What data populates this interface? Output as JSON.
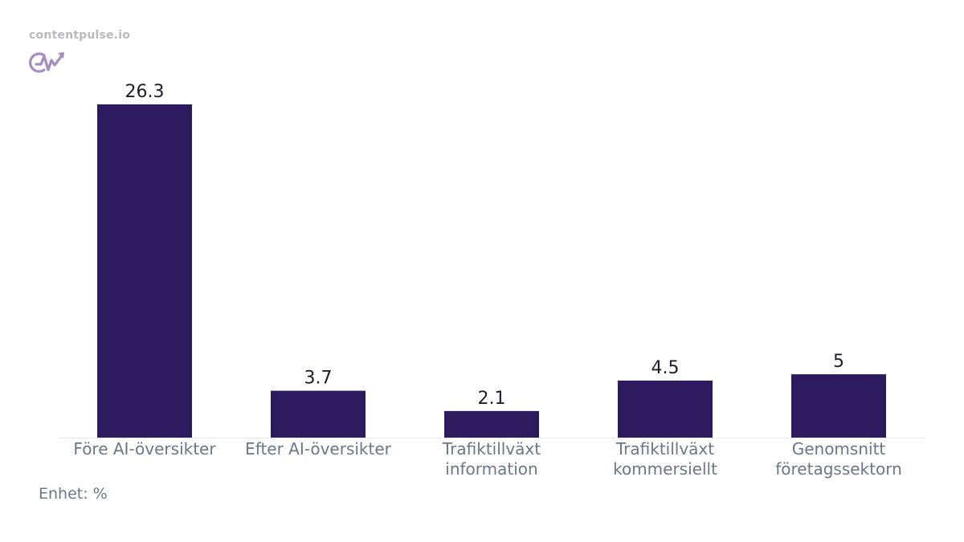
{
  "brand": {
    "site": "contentpulse.io",
    "logo_icon": "cp-pulse-logo-icon",
    "logo_color": "#a58bc0"
  },
  "unit_note": "Enhet: %",
  "colors": {
    "bar": "#2e1a5e",
    "value_label": "#1e1e2a",
    "category_label": "#6b7787",
    "baseline": "#e6e8ec"
  },
  "chart_data": {
    "type": "bar",
    "categories": [
      [
        "Före AI-översikter"
      ],
      [
        "Efter AI-översikter"
      ],
      [
        "Trafiktillväxt",
        "information"
      ],
      [
        "Trafiktillväxt",
        "kommersiellt"
      ],
      [
        "Genomsnitt",
        "företagssektorn"
      ]
    ],
    "values": [
      26.3,
      3.7,
      2.1,
      4.5,
      5
    ],
    "value_labels": [
      "26.3",
      "3.7",
      "2.1",
      "4.5",
      "5"
    ],
    "ylim": [
      0,
      26.3
    ],
    "grid": false,
    "legend": "none"
  }
}
